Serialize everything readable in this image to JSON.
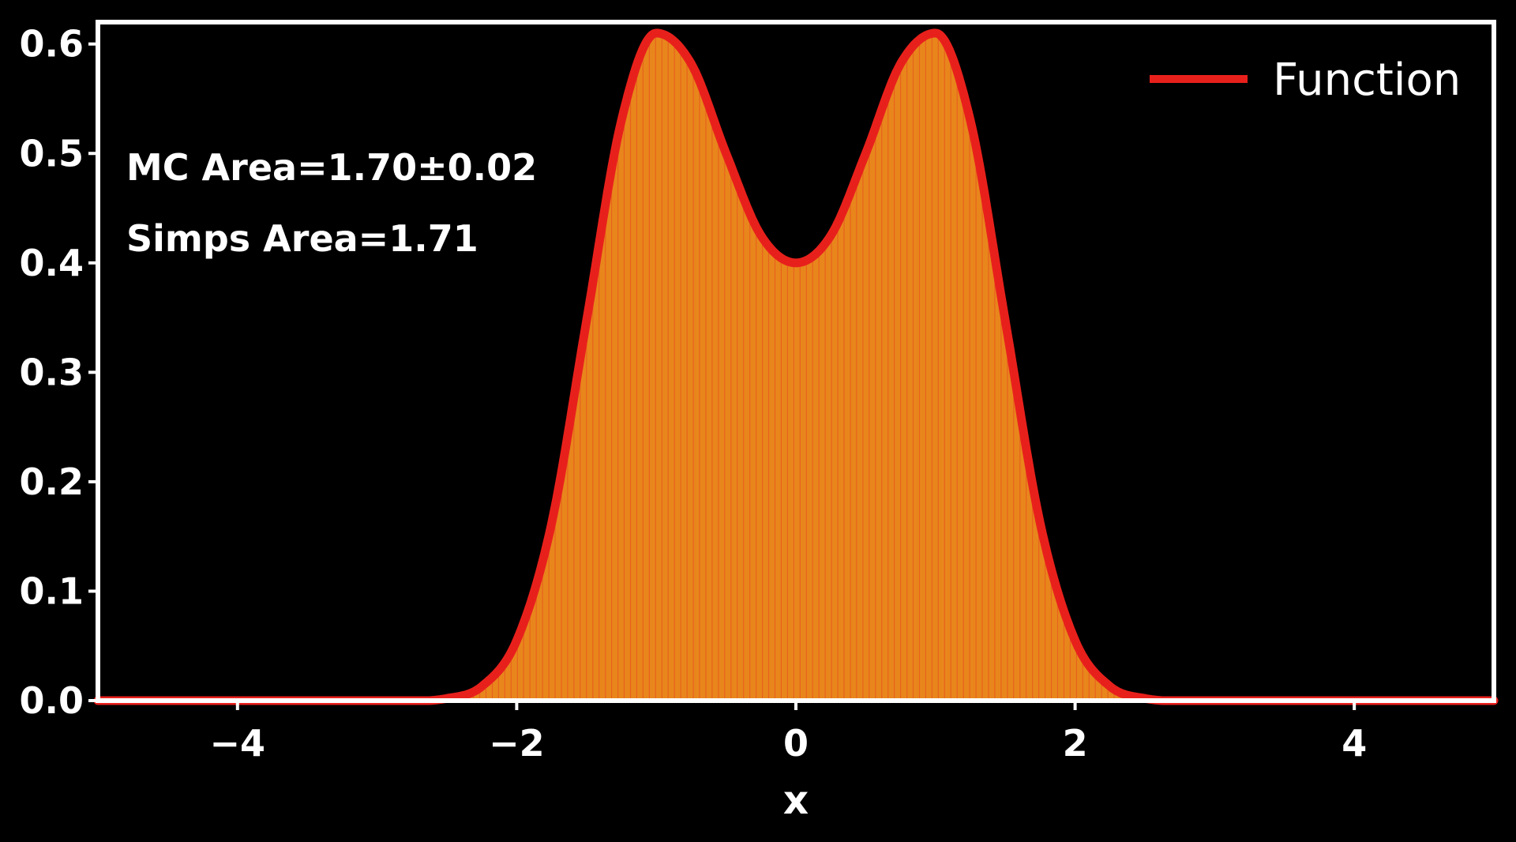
{
  "chart_data": {
    "type": "area",
    "xlabel": "x",
    "ylabel": "",
    "xlim": [
      -5,
      5
    ],
    "ylim": [
      0,
      0.62
    ],
    "xticks": [
      -4,
      -2,
      0,
      2,
      4
    ],
    "xtick_labels": [
      "−4",
      "−2",
      "0",
      "2",
      "4"
    ],
    "yticks": [
      0.0,
      0.1,
      0.2,
      0.3,
      0.4,
      0.5,
      0.6
    ],
    "ytick_labels": [
      "0.0",
      "0.1",
      "0.2",
      "0.3",
      "0.4",
      "0.5",
      "0.6"
    ],
    "grid": false,
    "legend": {
      "placement": "top-right",
      "entries": [
        "Function"
      ]
    },
    "annotations": [
      "MC Area=1.70±0.02",
      "Simps Area=1.71"
    ],
    "series": [
      {
        "name": "Function",
        "x": [
          -5.0,
          -4.0,
          -3.0,
          -2.5,
          -2.25,
          -2.0,
          -1.75,
          -1.5,
          -1.25,
          -1.0,
          -0.75,
          -0.5,
          -0.25,
          0.0,
          0.25,
          0.5,
          0.75,
          1.0,
          1.25,
          1.5,
          1.75,
          2.0,
          2.25,
          2.5,
          3.0,
          4.0,
          5.0
        ],
        "y": [
          0.0,
          0.0,
          0.0,
          0.002,
          0.013,
          0.055,
          0.162,
          0.347,
          0.53,
          0.61,
          0.582,
          0.5,
          0.425,
          0.4,
          0.425,
          0.5,
          0.582,
          0.61,
          0.53,
          0.347,
          0.162,
          0.055,
          0.013,
          0.002,
          0.0,
          0.0,
          0.0
        ]
      }
    ],
    "colors": {
      "line": "#e8201c",
      "fill": "#e8861c",
      "axes": "#ffffff",
      "background": "#000000"
    }
  }
}
